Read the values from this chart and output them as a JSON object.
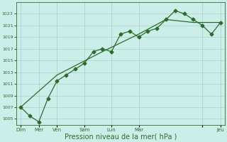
{
  "background_color": "#cceee8",
  "grid_color": "#aacccc",
  "line_color": "#2d6b2d",
  "xlabel": "Pression niveau de la mer( hPa )",
  "xlabel_fontsize": 7,
  "ylim": [
    1004,
    1025
  ],
  "yticks": [
    1005,
    1007,
    1009,
    1011,
    1013,
    1015,
    1017,
    1019,
    1021,
    1023
  ],
  "series1_x": [
    0,
    1,
    2,
    3,
    4,
    5,
    6,
    7,
    8,
    9,
    10,
    11,
    12,
    13,
    14,
    15,
    16,
    17,
    18,
    19,
    20,
    21,
    22
  ],
  "series1_y": [
    1007,
    1005.5,
    1004.5,
    1008.5,
    1011.5,
    1012.5,
    1013.5,
    1014.5,
    1016.5,
    1017,
    1016.5,
    1019.5,
    1020,
    1019,
    1020,
    1020.5,
    1022,
    1023.5,
    1023,
    1022,
    1021,
    1019.5,
    1021.5
  ],
  "series2_x": [
    0,
    4,
    9,
    13,
    16,
    19,
    22
  ],
  "series2_y": [
    1007,
    1012.5,
    1016.5,
    1019.5,
    1022,
    1021.5,
    1021.5
  ],
  "xtick_positions": [
    0,
    2,
    4,
    7,
    10,
    13,
    20,
    22
  ],
  "xtick_labels": [
    "Dim",
    "Mer",
    "Ven",
    "Sam",
    "Lun",
    "Mar",
    "",
    "Jeu"
  ],
  "marker_size": 2.5,
  "linewidth": 0.9,
  "figsize": [
    3.2,
    2.0
  ],
  "dpi": 100
}
